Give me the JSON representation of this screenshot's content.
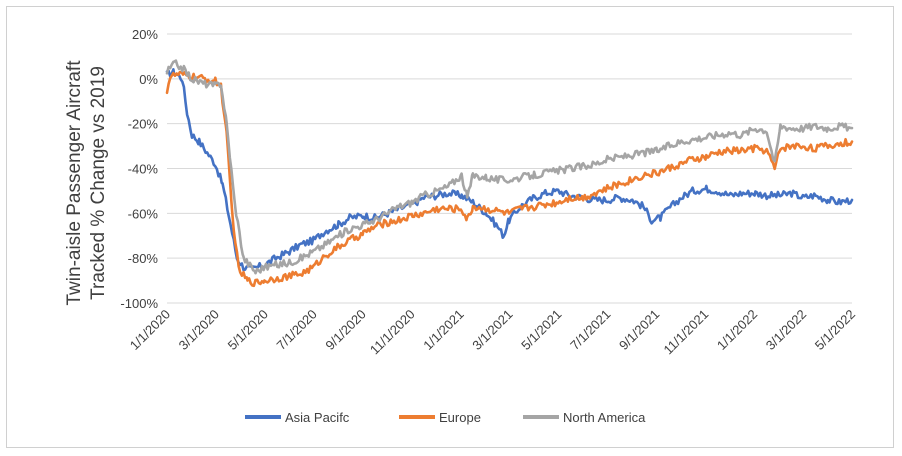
{
  "chart_data": {
    "type": "line",
    "title": "",
    "ylabel_lines": [
      "Twin-aisle Passenger Aircraft",
      "Tracked % Change vs 2019"
    ],
    "xlabel": "",
    "ylim": [
      -100,
      20
    ],
    "yticks": [
      20,
      0,
      -20,
      -40,
      -60,
      -80,
      -100
    ],
    "ytick_labels": [
      "20%",
      "0%",
      "-20%",
      "-40%",
      "-60%",
      "-80%",
      "-100%"
    ],
    "xlim": [
      "2020-01-01",
      "2022-05-01"
    ],
    "xtick_labels": [
      "1/1/2020",
      "3/1/2020",
      "5/1/2020",
      "7/1/2020",
      "9/1/2020",
      "11/1/2020",
      "1/1/2021",
      "3/1/2021",
      "5/1/2021",
      "7/1/2021",
      "9/1/2021",
      "11/1/2021",
      "1/1/2022",
      "3/1/2022",
      "5/1/2022"
    ],
    "grid": "horizontal",
    "legend_position": "bottom",
    "series": [
      {
        "name": "Asia Pacifc",
        "color": "#4472C4",
        "points": [
          [
            "2020-01-01",
            2
          ],
          [
            "2020-01-10",
            3
          ],
          [
            "2020-01-20",
            0
          ],
          [
            "2020-01-26",
            -15
          ],
          [
            "2020-02-01",
            -25
          ],
          [
            "2020-02-10",
            -28
          ],
          [
            "2020-02-20",
            -33
          ],
          [
            "2020-03-01",
            -38
          ],
          [
            "2020-03-10",
            -47
          ],
          [
            "2020-03-20",
            -65
          ],
          [
            "2020-03-28",
            -80
          ],
          [
            "2020-04-05",
            -84
          ],
          [
            "2020-04-15",
            -85
          ],
          [
            "2020-05-01",
            -83
          ],
          [
            "2020-05-15",
            -80
          ],
          [
            "2020-06-01",
            -77
          ],
          [
            "2020-06-15",
            -74
          ],
          [
            "2020-07-01",
            -72
          ],
          [
            "2020-07-15",
            -68
          ],
          [
            "2020-08-01",
            -65
          ],
          [
            "2020-08-15",
            -62
          ],
          [
            "2020-09-01",
            -61
          ],
          [
            "2020-09-15",
            -62
          ],
          [
            "2020-10-01",
            -60
          ],
          [
            "2020-10-15",
            -58
          ],
          [
            "2020-11-01",
            -56
          ],
          [
            "2020-11-15",
            -53
          ],
          [
            "2020-12-01",
            -52
          ],
          [
            "2020-12-15",
            -51
          ],
          [
            "2021-01-01",
            -52
          ],
          [
            "2021-01-15",
            -55
          ],
          [
            "2021-02-01",
            -60
          ],
          [
            "2021-02-15",
            -66
          ],
          [
            "2021-02-22",
            -70
          ],
          [
            "2021-03-01",
            -63
          ],
          [
            "2021-03-15",
            -57
          ],
          [
            "2021-04-01",
            -53
          ],
          [
            "2021-04-15",
            -51
          ],
          [
            "2021-05-01",
            -50
          ],
          [
            "2021-05-15",
            -52
          ],
          [
            "2021-06-01",
            -53
          ],
          [
            "2021-06-15",
            -54
          ],
          [
            "2021-07-01",
            -54
          ],
          [
            "2021-07-15",
            -53
          ],
          [
            "2021-08-01",
            -54
          ],
          [
            "2021-08-15",
            -57
          ],
          [
            "2021-08-25",
            -63
          ],
          [
            "2021-09-05",
            -62
          ],
          [
            "2021-09-15",
            -58
          ],
          [
            "2021-10-01",
            -53
          ],
          [
            "2021-10-15",
            -50
          ],
          [
            "2021-11-01",
            -49
          ],
          [
            "2021-11-15",
            -50
          ],
          [
            "2021-12-01",
            -52
          ],
          [
            "2021-12-15",
            -51
          ],
          [
            "2022-01-01",
            -51
          ],
          [
            "2022-01-15",
            -52
          ],
          [
            "2022-02-01",
            -52
          ],
          [
            "2022-02-15",
            -51
          ],
          [
            "2022-03-01",
            -53
          ],
          [
            "2022-03-15",
            -52
          ],
          [
            "2022-04-01",
            -54
          ],
          [
            "2022-04-15",
            -55
          ],
          [
            "2022-05-01",
            -54
          ]
        ]
      },
      {
        "name": "Europe",
        "color": "#ED7D31",
        "points": [
          [
            "2020-01-01",
            -5
          ],
          [
            "2020-01-05",
            1
          ],
          [
            "2020-01-15",
            2
          ],
          [
            "2020-02-01",
            1
          ],
          [
            "2020-02-15",
            0
          ],
          [
            "2020-03-01",
            -1
          ],
          [
            "2020-03-08",
            -3
          ],
          [
            "2020-03-15",
            -25
          ],
          [
            "2020-03-22",
            -60
          ],
          [
            "2020-03-30",
            -85
          ],
          [
            "2020-04-10",
            -90
          ],
          [
            "2020-04-20",
            -91
          ],
          [
            "2020-05-01",
            -90
          ],
          [
            "2020-05-15",
            -89
          ],
          [
            "2020-06-01",
            -88
          ],
          [
            "2020-06-15",
            -87
          ],
          [
            "2020-07-01",
            -84
          ],
          [
            "2020-07-15",
            -79
          ],
          [
            "2020-08-01",
            -75
          ],
          [
            "2020-08-15",
            -72
          ],
          [
            "2020-09-01",
            -69
          ],
          [
            "2020-09-15",
            -66
          ],
          [
            "2020-10-01",
            -64
          ],
          [
            "2020-10-15",
            -63
          ],
          [
            "2020-11-01",
            -61
          ],
          [
            "2020-11-15",
            -60
          ],
          [
            "2020-12-01",
            -58
          ],
          [
            "2020-12-15",
            -58
          ],
          [
            "2021-01-01",
            -58
          ],
          [
            "2021-01-08",
            -63
          ],
          [
            "2021-01-15",
            -57
          ],
          [
            "2021-02-01",
            -58
          ],
          [
            "2021-02-15",
            -59
          ],
          [
            "2021-03-01",
            -60
          ],
          [
            "2021-03-15",
            -58
          ],
          [
            "2021-04-01",
            -57
          ],
          [
            "2021-04-15",
            -56
          ],
          [
            "2021-05-01",
            -55
          ],
          [
            "2021-05-15",
            -53
          ],
          [
            "2021-06-01",
            -53
          ],
          [
            "2021-06-15",
            -51
          ],
          [
            "2021-07-01",
            -49
          ],
          [
            "2021-07-15",
            -47
          ],
          [
            "2021-08-01",
            -45
          ],
          [
            "2021-08-15",
            -43
          ],
          [
            "2021-09-01",
            -42
          ],
          [
            "2021-09-15",
            -40
          ],
          [
            "2021-10-01",
            -38
          ],
          [
            "2021-10-15",
            -36
          ],
          [
            "2021-11-01",
            -35
          ],
          [
            "2021-11-15",
            -33
          ],
          [
            "2021-12-01",
            -32
          ],
          [
            "2021-12-15",
            -32
          ],
          [
            "2022-01-01",
            -31
          ],
          [
            "2022-01-15",
            -32
          ],
          [
            "2022-01-25",
            -40
          ],
          [
            "2022-02-01",
            -31
          ],
          [
            "2022-02-15",
            -30
          ],
          [
            "2022-03-01",
            -30
          ],
          [
            "2022-03-15",
            -31
          ],
          [
            "2022-04-01",
            -30
          ],
          [
            "2022-04-15",
            -29
          ],
          [
            "2022-05-01",
            -28
          ]
        ]
      },
      {
        "name": "North America",
        "color": "#A5A5A5",
        "points": [
          [
            "2020-01-01",
            3
          ],
          [
            "2020-01-10",
            7
          ],
          [
            "2020-01-20",
            5
          ],
          [
            "2020-02-01",
            0
          ],
          [
            "2020-02-15",
            -2
          ],
          [
            "2020-03-01",
            -3
          ],
          [
            "2020-03-08",
            -2
          ],
          [
            "2020-03-15",
            -20
          ],
          [
            "2020-03-25",
            -55
          ],
          [
            "2020-04-05",
            -80
          ],
          [
            "2020-04-20",
            -86
          ],
          [
            "2020-05-01",
            -84
          ],
          [
            "2020-05-15",
            -83
          ],
          [
            "2020-06-01",
            -82
          ],
          [
            "2020-06-15",
            -80
          ],
          [
            "2020-07-01",
            -77
          ],
          [
            "2020-07-15",
            -74
          ],
          [
            "2020-08-01",
            -70
          ],
          [
            "2020-08-15",
            -67
          ],
          [
            "2020-09-01",
            -65
          ],
          [
            "2020-09-15",
            -63
          ],
          [
            "2020-10-01",
            -60
          ],
          [
            "2020-10-15",
            -57
          ],
          [
            "2020-11-01",
            -55
          ],
          [
            "2020-11-15",
            -52
          ],
          [
            "2020-12-01",
            -50
          ],
          [
            "2020-12-15",
            -48
          ],
          [
            "2021-01-01",
            -43
          ],
          [
            "2021-01-08",
            -53
          ],
          [
            "2021-01-15",
            -43
          ],
          [
            "2021-02-01",
            -44
          ],
          [
            "2021-02-15",
            -45
          ],
          [
            "2021-03-01",
            -45
          ],
          [
            "2021-03-15",
            -44
          ],
          [
            "2021-04-01",
            -43
          ],
          [
            "2021-04-15",
            -42
          ],
          [
            "2021-05-01",
            -41
          ],
          [
            "2021-05-15",
            -40
          ],
          [
            "2021-06-01",
            -39
          ],
          [
            "2021-06-15",
            -38
          ],
          [
            "2021-07-01",
            -36
          ],
          [
            "2021-07-15",
            -35
          ],
          [
            "2021-08-01",
            -34
          ],
          [
            "2021-08-15",
            -33
          ],
          [
            "2021-09-01",
            -32
          ],
          [
            "2021-09-15",
            -30
          ],
          [
            "2021-10-01",
            -28
          ],
          [
            "2021-10-15",
            -27
          ],
          [
            "2021-11-01",
            -26
          ],
          [
            "2021-11-15",
            -25
          ],
          [
            "2021-12-01",
            -24
          ],
          [
            "2021-12-15",
            -25
          ],
          [
            "2022-01-01",
            -22
          ],
          [
            "2022-01-15",
            -23
          ],
          [
            "2022-01-25",
            -38
          ],
          [
            "2022-02-01",
            -21
          ],
          [
            "2022-02-15",
            -22
          ],
          [
            "2022-03-01",
            -22
          ],
          [
            "2022-03-15",
            -21
          ],
          [
            "2022-04-01",
            -22
          ],
          [
            "2022-04-15",
            -21
          ],
          [
            "2022-05-01",
            -22
          ]
        ]
      }
    ]
  }
}
